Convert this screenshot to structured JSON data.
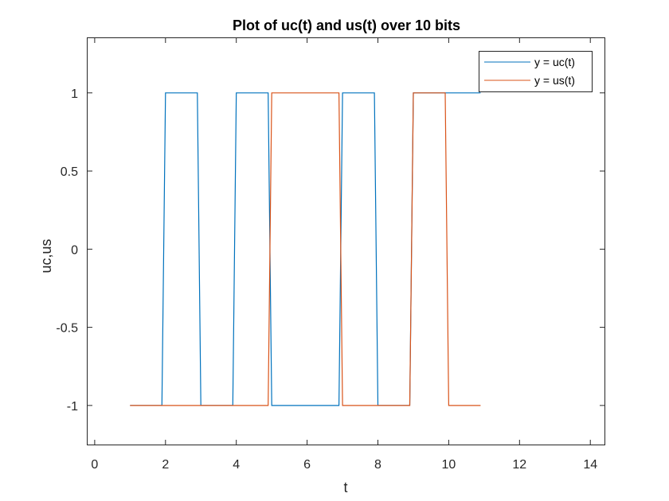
{
  "chart_data": {
    "type": "line",
    "title": "Plot of uc(t) and us(t) over 10 bits",
    "xlabel": "t",
    "ylabel": "uc,us",
    "xlim": [
      -0.2,
      14.4
    ],
    "ylim": [
      -1.25,
      1.35
    ],
    "xticks": [
      0,
      2,
      4,
      6,
      8,
      10,
      12,
      14
    ],
    "xtick_labels": [
      "0",
      "2",
      "4",
      "6",
      "8",
      "10",
      "12",
      "14"
    ],
    "yticks": [
      1,
      0.5,
      0,
      -0.5,
      -1
    ],
    "ytick_labels": [
      "1",
      "0.5",
      "0",
      "-0.5",
      "-1"
    ],
    "grid": false,
    "legend_position": "top-right",
    "series": [
      {
        "name": "y = uc(t)",
        "color": "#0072BD",
        "x": [
          1,
          1.9,
          2,
          2.9,
          3,
          3.9,
          4,
          4.9,
          5,
          5.9,
          6,
          6.9,
          7,
          7.9,
          8,
          8.9,
          9,
          9.9,
          10,
          10.9
        ],
        "y": [
          -1,
          -1,
          1,
          1,
          -1,
          -1,
          1,
          1,
          -1,
          -1,
          -1,
          -1,
          1,
          1,
          -1,
          -1,
          1,
          1,
          1,
          1
        ]
      },
      {
        "name": "y = us(t)",
        "color": "#D95319",
        "x": [
          1,
          1.9,
          2,
          2.9,
          3,
          3.9,
          4,
          4.9,
          5,
          5.9,
          6,
          6.9,
          7,
          7.9,
          8,
          8.9,
          9,
          9.9,
          10,
          10.9
        ],
        "y": [
          -1,
          -1,
          -1,
          -1,
          -1,
          -1,
          -1,
          -1,
          1,
          1,
          1,
          1,
          -1,
          -1,
          -1,
          -1,
          1,
          1,
          -1,
          -1
        ]
      }
    ]
  }
}
